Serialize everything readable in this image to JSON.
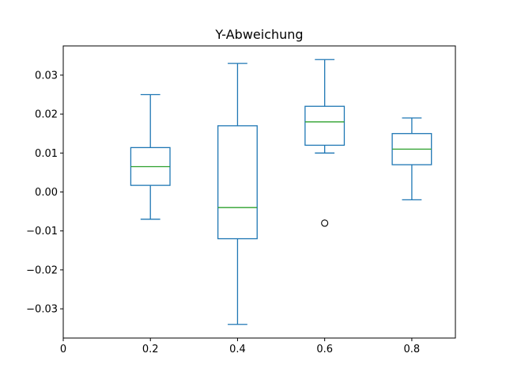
{
  "chart_data": {
    "type": "box",
    "title": "Y-Abweichung",
    "xlabel": "",
    "ylabel": "",
    "xlim": [
      0,
      0.9
    ],
    "ylim": [
      -0.0375,
      0.0375
    ],
    "x_ticks": [
      {
        "value": 0,
        "label": "0"
      },
      {
        "value": 0.2,
        "label": "0.2"
      },
      {
        "value": 0.4,
        "label": "0.4"
      },
      {
        "value": 0.6,
        "label": "0.6"
      },
      {
        "value": 0.8,
        "label": "0.8"
      }
    ],
    "y_ticks": [
      {
        "value": -0.03,
        "label": "−0.03"
      },
      {
        "value": -0.02,
        "label": "−0.02"
      },
      {
        "value": -0.01,
        "label": "−0.01"
      },
      {
        "value": 0.0,
        "label": "0.00"
      },
      {
        "value": 0.01,
        "label": "0.01"
      },
      {
        "value": 0.02,
        "label": "0.02"
      },
      {
        "value": 0.03,
        "label": "0.03"
      }
    ],
    "box_width": 0.09,
    "boxes": [
      {
        "x": 0.2,
        "whisker_low": -0.007,
        "q1": 0.0017,
        "median": 0.0065,
        "q3": 0.0114,
        "whisker_high": 0.025,
        "outliers": []
      },
      {
        "x": 0.4,
        "whisker_low": -0.034,
        "q1": -0.012,
        "median": -0.004,
        "q3": 0.017,
        "whisker_high": 0.033,
        "outliers": []
      },
      {
        "x": 0.6,
        "whisker_low": 0.01,
        "q1": 0.012,
        "median": 0.018,
        "q3": 0.022,
        "whisker_high": 0.034,
        "outliers": [
          -0.008
        ]
      },
      {
        "x": 0.8,
        "whisker_low": -0.002,
        "q1": 0.007,
        "median": 0.011,
        "q3": 0.015,
        "whisker_high": 0.019,
        "outliers": []
      }
    ],
    "grid": false,
    "colors": {
      "box": "#1f77b4",
      "median": "#2ca02c",
      "outlier": "#000000"
    }
  }
}
